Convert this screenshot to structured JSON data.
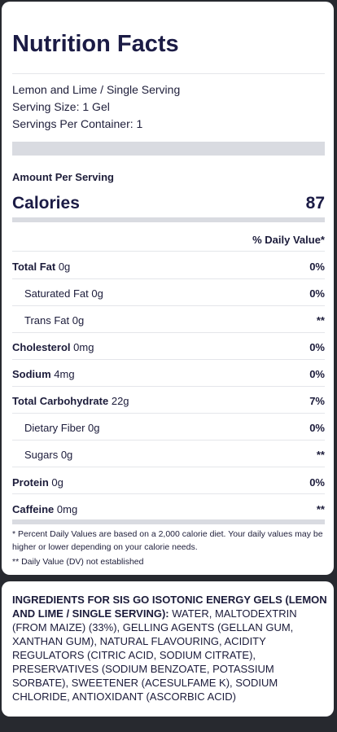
{
  "label": {
    "title": "Nutrition Facts",
    "product_line": "Lemon and Lime / Single Serving",
    "serving_size": "Serving Size: 1 Gel",
    "servings_per_container": "Servings Per Container: 1",
    "amount_per_serving": "Amount Per Serving",
    "calories_label": "Calories",
    "calories_value": "87",
    "daily_value_header": "% Daily Value*",
    "nutrients": [
      {
        "name": "Total Fat",
        "amount": "0g",
        "dv": "0%"
      },
      {
        "name": "Saturated Fat",
        "amount": "0g",
        "dv": "0%"
      },
      {
        "name": "Trans Fat",
        "amount": "0g",
        "dv": "**"
      },
      {
        "name": "Cholesterol",
        "amount": "0mg",
        "dv": "0%"
      },
      {
        "name": "Sodium",
        "amount": "4mg",
        "dv": "0%"
      },
      {
        "name": "Total Carbohydrate",
        "amount": "22g",
        "dv": "7%"
      },
      {
        "name": "Dietary Fiber",
        "amount": "0g",
        "dv": "0%"
      },
      {
        "name": "Sugars",
        "amount": "0g",
        "dv": "**"
      },
      {
        "name": "Protein",
        "amount": "0g",
        "dv": "0%"
      },
      {
        "name": "Caffeine",
        "amount": "0mg",
        "dv": "**"
      }
    ],
    "footnote_1": "* Percent Daily Values are based on a 2,000 calorie diet. Your daily values may be higher or lower depending on your calorie needs.",
    "footnote_2": "** Daily Value (DV) not established"
  },
  "ingredients": {
    "heading": "INGREDIENTS FOR SIS GO ISOTONIC ENERGY GELS (LEMON AND LIME / SINGLE SERVING):",
    "text": "WATER, MALTODEXTRIN (FROM MAIZE) (33%), GELLING AGENTS (GELLAN GUM, XANTHAN GUM), NATURAL FLAVOURING, ACIDITY REGULATORS (CITRIC ACID, SODIUM CITRATE), PRESERVATIVES (SODIUM BENZOATE, POTASSIUM SORBATE), SWEETENER (ACESULFAME K), SODIUM CHLORIDE, ANTIOXIDANT (ASCORBIC ACID)"
  }
}
